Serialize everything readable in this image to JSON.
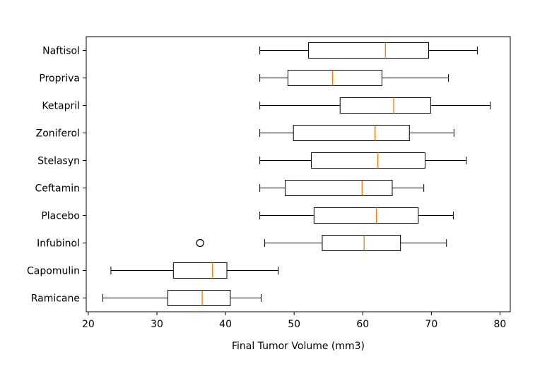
{
  "chart_data": {
    "type": "boxplot",
    "orientation": "horizontal",
    "title": "",
    "xlabel": "Final Tumor Volume (mm3)",
    "ylabel": "",
    "xlim": [
      19.7,
      81.5
    ],
    "xticks": [
      20,
      30,
      40,
      50,
      60,
      70,
      80
    ],
    "grid": false,
    "categories": [
      "Ramicane",
      "Capomulin",
      "Infubinol",
      "Placebo",
      "Ceftamin",
      "Stelasyn",
      "Zoniferol",
      "Ketapril",
      "Propriva",
      "Naftisol"
    ],
    "series": [
      {
        "category": "Ramicane",
        "whisker_low": 22.1,
        "q1": 31.6,
        "median": 36.6,
        "q3": 40.7,
        "whisker_high": 45.2,
        "outliers": []
      },
      {
        "category": "Capomulin",
        "whisker_low": 23.3,
        "q1": 32.4,
        "median": 38.1,
        "q3": 40.2,
        "whisker_high": 47.7,
        "outliers": []
      },
      {
        "category": "Infubinol",
        "whisker_low": 45.7,
        "q1": 54.1,
        "median": 60.2,
        "q3": 65.5,
        "whisker_high": 72.2,
        "outliers": [
          36.3
        ]
      },
      {
        "category": "Placebo",
        "whisker_low": 45.0,
        "q1": 52.9,
        "median": 62.0,
        "q3": 68.1,
        "whisker_high": 73.2,
        "outliers": []
      },
      {
        "category": "Ceftamin",
        "whisker_low": 45.0,
        "q1": 48.7,
        "median": 59.9,
        "q3": 64.3,
        "whisker_high": 68.9,
        "outliers": []
      },
      {
        "category": "Stelasyn",
        "whisker_low": 45.0,
        "q1": 52.5,
        "median": 62.2,
        "q3": 69.1,
        "whisker_high": 75.1,
        "outliers": []
      },
      {
        "category": "Zoniferol",
        "whisker_low": 45.0,
        "q1": 49.9,
        "median": 61.8,
        "q3": 66.8,
        "whisker_high": 73.3,
        "outliers": []
      },
      {
        "category": "Ketapril",
        "whisker_low": 45.0,
        "q1": 56.7,
        "median": 64.5,
        "q3": 69.9,
        "whisker_high": 78.6,
        "outliers": []
      },
      {
        "category": "Propriva",
        "whisker_low": 45.0,
        "q1": 49.1,
        "median": 55.6,
        "q3": 62.8,
        "whisker_high": 72.5,
        "outliers": []
      },
      {
        "category": "Naftisol",
        "whisker_low": 45.0,
        "q1": 52.1,
        "median": 63.3,
        "q3": 69.6,
        "whisker_high": 76.7,
        "outliers": []
      }
    ],
    "colors": {
      "box": "#000000",
      "median": "#ff7f0e",
      "outlier": "#000000"
    }
  }
}
